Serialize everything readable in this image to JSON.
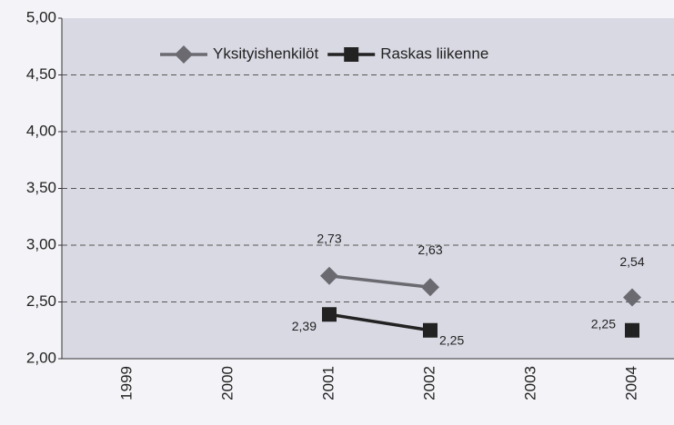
{
  "chart_data": {
    "type": "line",
    "categories": [
      "1999",
      "2000",
      "2001",
      "2002",
      "2003",
      "2004"
    ],
    "series": [
      {
        "name": "Yksityishenkilöt",
        "color": "#6a6a70",
        "marker": "diamond",
        "values": [
          null,
          null,
          2.73,
          2.63,
          null,
          2.54
        ],
        "value_labels": [
          null,
          null,
          "2,73",
          "2,63",
          null,
          "2,54"
        ]
      },
      {
        "name": "Raskas liikenne",
        "color": "#222222",
        "marker": "square",
        "values": [
          null,
          null,
          2.39,
          2.25,
          null,
          2.25
        ],
        "value_labels": [
          null,
          null,
          "2,39",
          "2,25",
          null,
          "2,25"
        ]
      }
    ],
    "ylim": [
      2,
      5
    ],
    "yticks": [
      {
        "value": 2,
        "label": "2,00"
      },
      {
        "value": 2.5,
        "label": "2,50"
      },
      {
        "value": 3,
        "label": "3,00"
      },
      {
        "value": 3.5,
        "label": "3,50"
      },
      {
        "value": 4,
        "label": "4,00"
      },
      {
        "value": 4.5,
        "label": "4,50"
      },
      {
        "value": 5,
        "label": "5,00"
      }
    ],
    "grid": true,
    "legend": "top"
  }
}
